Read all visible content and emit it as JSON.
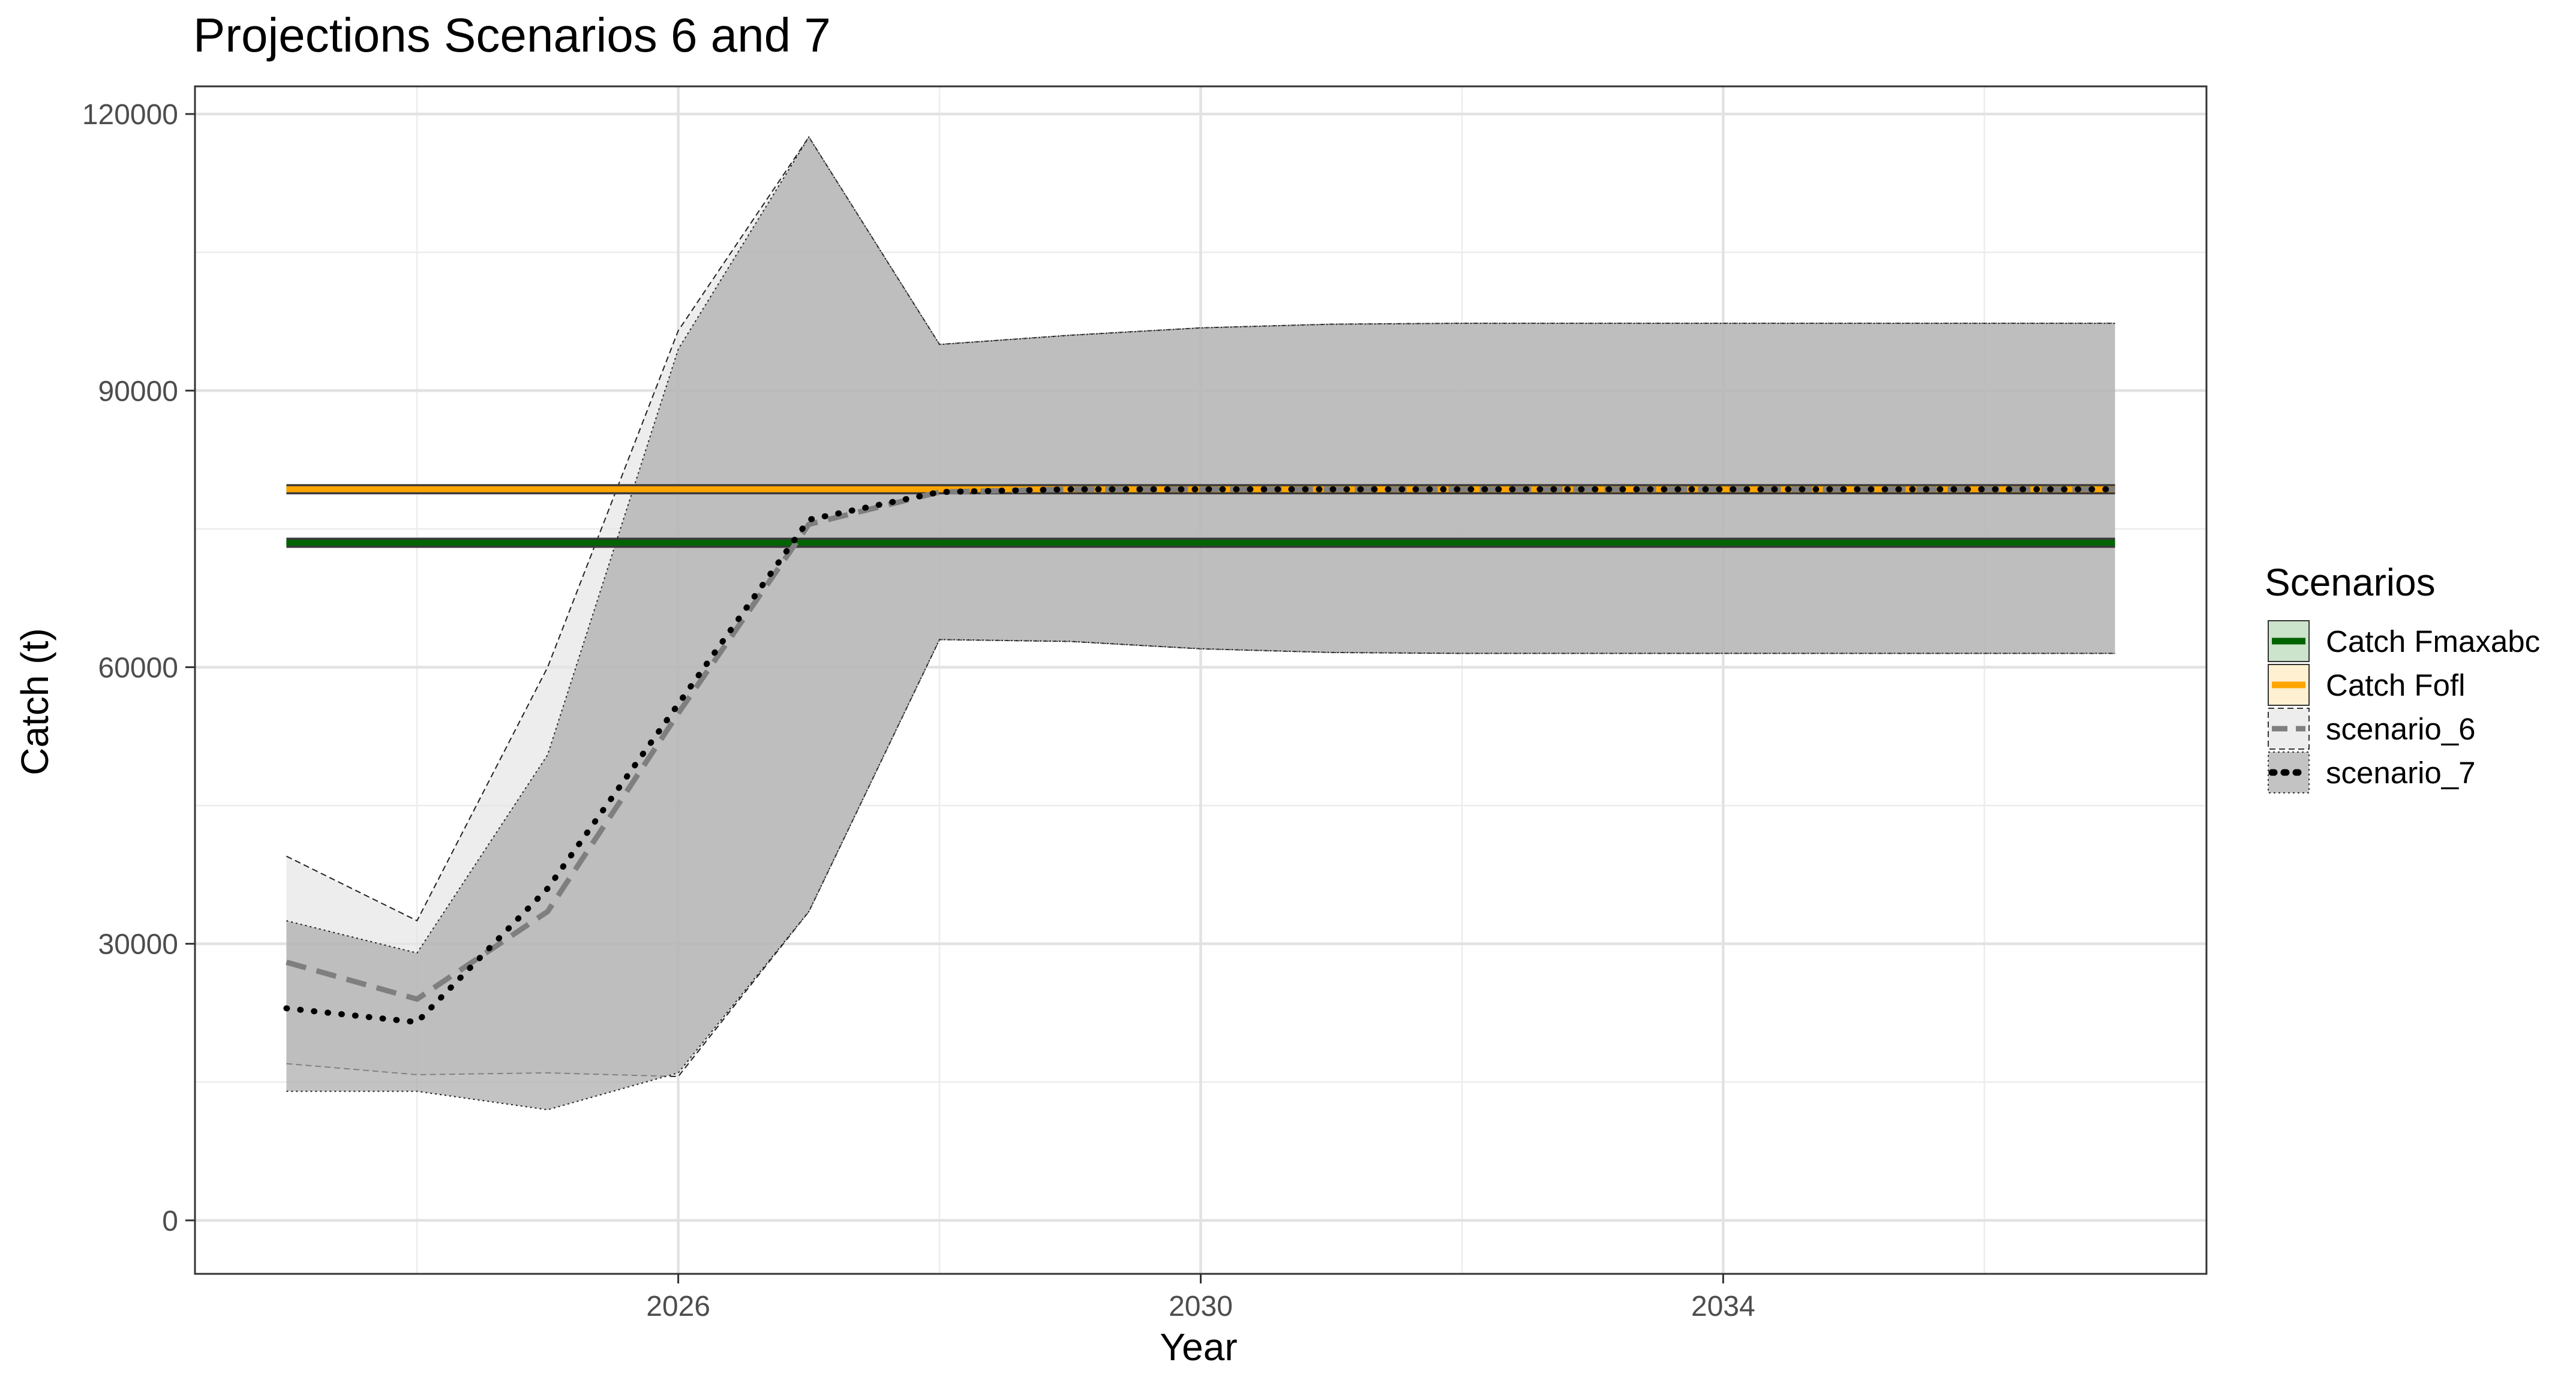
{
  "chart_data": {
    "type": "line",
    "title": "Projections Scenarios 6 and 7",
    "xlabel": "Year",
    "ylabel": "Catch (t)",
    "xlim": [
      2022.3,
      2037.7
    ],
    "ylim": [
      -5800,
      123000
    ],
    "x_ticks": [
      2026,
      2030,
      2034
    ],
    "x_tick_labels": [
      "2026",
      "2030",
      "2034"
    ],
    "x_minor_ticks": [
      2024,
      2028,
      2032,
      2036
    ],
    "y_ticks": [
      0,
      30000,
      60000,
      90000,
      120000
    ],
    "y_tick_labels": [
      "0",
      "30000",
      "60000",
      "90000",
      "120000"
    ],
    "y_minor_ticks": [
      15000,
      45000,
      75000,
      105000
    ],
    "grid": true,
    "legend": {
      "title": "Scenarios",
      "placement": "right"
    },
    "x": [
      2023,
      2024,
      2025,
      2026,
      2027,
      2028,
      2029,
      2030,
      2031,
      2032,
      2033,
      2034,
      2035,
      2036,
      2037
    ],
    "reference_lines": [
      {
        "name": "Catch Fmaxabc",
        "value": 73500,
        "color": "#006400",
        "fill": "#cce3cc"
      },
      {
        "name": "Catch Fofl",
        "value": 79300,
        "color": "#ffa500",
        "fill": "#fff0d1"
      }
    ],
    "series": [
      {
        "name": "scenario_6",
        "line_color": "#7f7f7f",
        "dash": "dashed",
        "fill": "#e6e6e6",
        "values": [
          28000,
          24000,
          33500,
          55000,
          75500,
          79000,
          79300,
          79300,
          79300,
          79300,
          79300,
          79300,
          79300,
          79300,
          79300
        ],
        "lower": [
          17000,
          15800,
          16000,
          15600,
          33500,
          63000,
          62800,
          62000,
          61600,
          61500,
          61500,
          61500,
          61500,
          61500,
          61500
        ],
        "upper": [
          39500,
          32500,
          60000,
          96500,
          117500,
          95000,
          96000,
          96800,
          97200,
          97300,
          97300,
          97300,
          97300,
          97300,
          97300
        ]
      },
      {
        "name": "scenario_7",
        "line_color": "#000000",
        "dash": "dotted",
        "fill": "#a9a9a9",
        "values": [
          23000,
          21500,
          36000,
          56000,
          76000,
          79000,
          79300,
          79300,
          79300,
          79300,
          79300,
          79300,
          79300,
          79300,
          79300
        ],
        "lower": [
          14000,
          14000,
          12000,
          16000,
          33500,
          63000,
          62800,
          62000,
          61600,
          61500,
          61500,
          61500,
          61500,
          61500,
          61500
        ],
        "upper": [
          32500,
          29000,
          50500,
          94500,
          117500,
          95000,
          96000,
          96800,
          97200,
          97300,
          97300,
          97300,
          97300,
          97300,
          97300
        ]
      }
    ]
  }
}
